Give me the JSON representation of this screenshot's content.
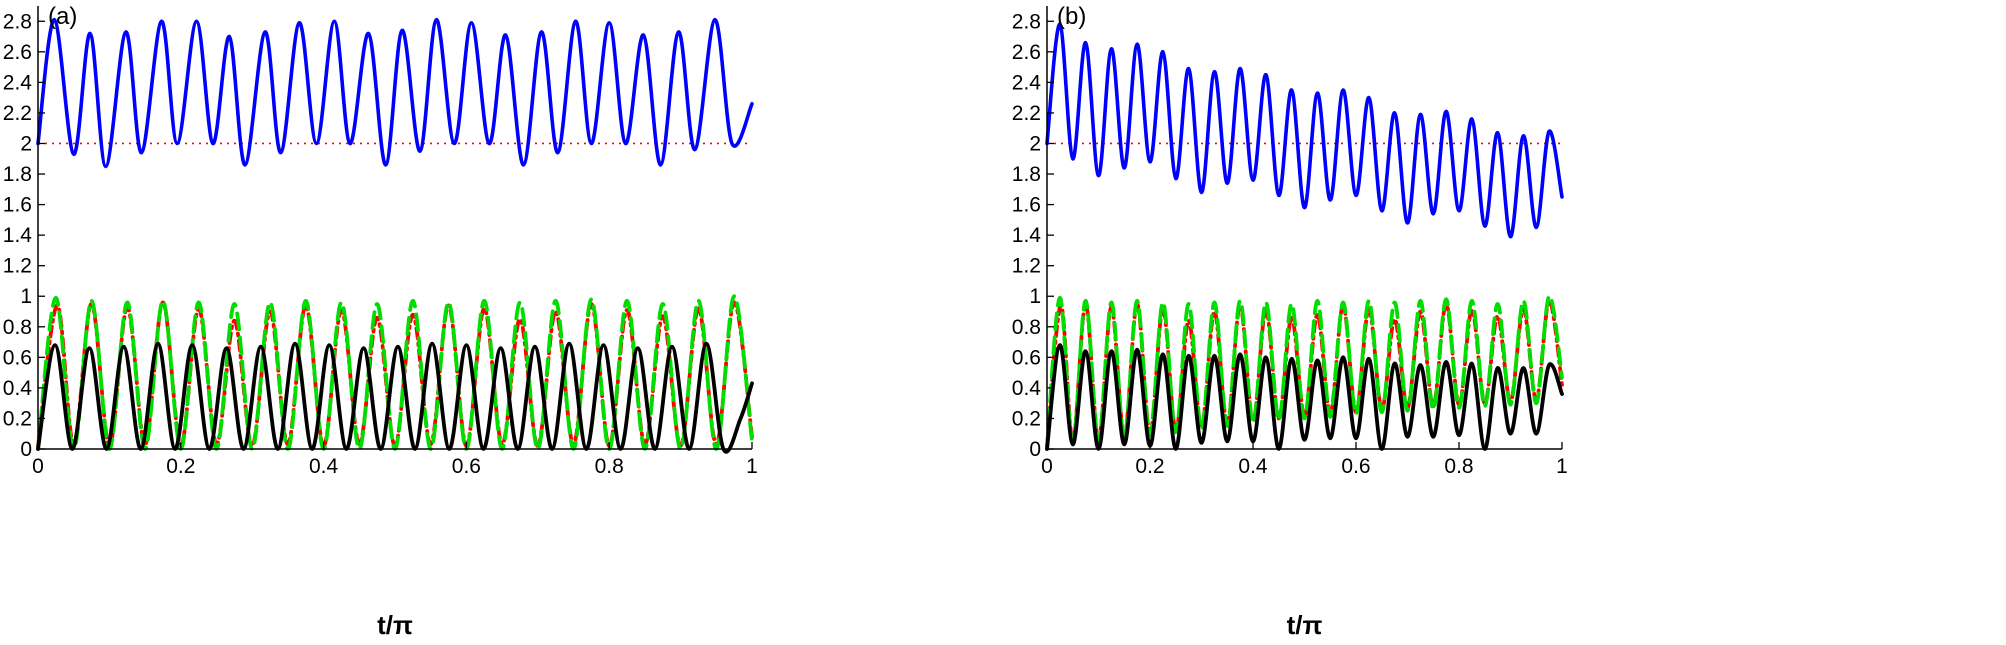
{
  "chart_data": [
    {
      "type": "line",
      "panel_label": "(a)",
      "xlabel": "t/π",
      "ylabel": "",
      "xlim": [
        0,
        1
      ],
      "ylim": [
        0,
        2.9
      ],
      "x_ticks": [
        "0",
        "0.2",
        "0.4",
        "0.6",
        "0.8",
        "1"
      ],
      "y_ticks": [
        "0",
        "0.2",
        "0.4",
        "0.6",
        "0.8",
        "1",
        "1.2",
        "1.4",
        "1.6",
        "1.8",
        "2",
        "2.2",
        "2.4",
        "2.6",
        "2.8"
      ],
      "grid": false,
      "reference_line": {
        "y": 2,
        "color": "#ff0000",
        "style": "dotted"
      },
      "series": [
        {
          "color": "#0000ff",
          "style": "solid",
          "x": [
            0,
            0.023,
            0.05,
            0.073,
            0.095,
            0.123,
            0.145,
            0.173,
            0.195,
            0.222,
            0.245,
            0.268,
            0.29,
            0.318,
            0.34,
            0.366,
            0.39,
            0.415,
            0.437,
            0.463,
            0.487,
            0.51,
            0.535,
            0.558,
            0.583,
            0.607,
            0.632,
            0.655,
            0.68,
            0.705,
            0.728,
            0.753,
            0.775,
            0.8,
            0.823,
            0.848,
            0.872,
            0.897,
            0.92,
            0.948,
            0.972,
            1.0
          ],
          "y": [
            2.0,
            2.81,
            1.93,
            2.72,
            1.85,
            2.73,
            1.94,
            2.8,
            2.0,
            2.8,
            2.0,
            2.7,
            1.86,
            2.73,
            1.94,
            2.79,
            2.0,
            2.8,
            2.0,
            2.72,
            1.86,
            2.74,
            1.95,
            2.81,
            2.0,
            2.79,
            2.0,
            2.71,
            1.86,
            2.73,
            1.94,
            2.8,
            2.0,
            2.79,
            2.0,
            2.71,
            1.86,
            2.73,
            1.96,
            2.81,
            2.0,
            2.26
          ]
        },
        {
          "color": "#000000",
          "style": "solid",
          "x": [
            0,
            0.024,
            0.048,
            0.072,
            0.096,
            0.12,
            0.144,
            0.168,
            0.192,
            0.216,
            0.24,
            0.264,
            0.288,
            0.312,
            0.336,
            0.36,
            0.384,
            0.408,
            0.432,
            0.456,
            0.48,
            0.504,
            0.528,
            0.552,
            0.576,
            0.6,
            0.624,
            0.648,
            0.672,
            0.696,
            0.72,
            0.744,
            0.768,
            0.792,
            0.816,
            0.84,
            0.864,
            0.888,
            0.912,
            0.936,
            0.96,
            0.984,
            1.0
          ],
          "y": [
            0.0,
            0.68,
            0.0,
            0.66,
            0.0,
            0.67,
            0.0,
            0.69,
            0.0,
            0.68,
            0.0,
            0.66,
            0.0,
            0.67,
            0.0,
            0.69,
            0.0,
            0.68,
            0.0,
            0.66,
            0.0,
            0.67,
            0.0,
            0.69,
            0.0,
            0.68,
            0.0,
            0.66,
            0.0,
            0.67,
            0.0,
            0.69,
            0.0,
            0.68,
            0.0,
            0.66,
            0.0,
            0.67,
            0.0,
            0.69,
            0.0,
            0.2,
            0.43
          ]
        },
        {
          "color": "#ff0000",
          "style": "dashdot",
          "x": [
            0,
            0.027,
            0.05,
            0.075,
            0.1,
            0.125,
            0.15,
            0.175,
            0.2,
            0.225,
            0.25,
            0.275,
            0.3,
            0.325,
            0.35,
            0.375,
            0.4,
            0.425,
            0.45,
            0.475,
            0.5,
            0.525,
            0.55,
            0.575,
            0.6,
            0.625,
            0.65,
            0.675,
            0.7,
            0.725,
            0.75,
            0.775,
            0.8,
            0.825,
            0.85,
            0.875,
            0.9,
            0.925,
            0.95,
            0.975,
            1.0
          ],
          "y": [
            0.02,
            0.94,
            0.03,
            0.95,
            0.02,
            0.93,
            0.03,
            0.96,
            0.02,
            0.92,
            0.03,
            0.84,
            0.02,
            0.9,
            0.03,
            0.94,
            0.02,
            0.91,
            0.03,
            0.86,
            0.02,
            0.88,
            0.03,
            0.94,
            0.02,
            0.92,
            0.03,
            0.85,
            0.02,
            0.9,
            0.03,
            0.95,
            0.02,
            0.91,
            0.03,
            0.87,
            0.02,
            0.92,
            0.03,
            0.96,
            0.08
          ]
        },
        {
          "color": "#00dd00",
          "style": "dashed",
          "x": [
            0,
            0.025,
            0.05,
            0.075,
            0.1,
            0.125,
            0.15,
            0.175,
            0.2,
            0.225,
            0.25,
            0.275,
            0.3,
            0.325,
            0.35,
            0.375,
            0.4,
            0.425,
            0.45,
            0.475,
            0.5,
            0.525,
            0.55,
            0.575,
            0.6,
            0.625,
            0.65,
            0.675,
            0.7,
            0.725,
            0.75,
            0.775,
            0.8,
            0.825,
            0.85,
            0.875,
            0.9,
            0.925,
            0.95,
            0.975,
            1.0
          ],
          "y": [
            0.0,
            0.99,
            0.0,
            0.97,
            0.0,
            0.96,
            0.0,
            0.97,
            0.0,
            0.96,
            0.0,
            0.95,
            0.0,
            0.96,
            0.0,
            0.97,
            0.0,
            0.96,
            0.0,
            0.95,
            0.0,
            0.97,
            0.0,
            0.96,
            0.0,
            0.97,
            0.0,
            0.96,
            0.0,
            0.97,
            0.0,
            0.98,
            0.0,
            0.97,
            0.0,
            0.95,
            0.0,
            0.97,
            0.0,
            1.0,
            0.05
          ]
        }
      ]
    },
    {
      "type": "line",
      "panel_label": "(b)",
      "xlabel": "t/π",
      "ylabel": "",
      "xlim": [
        0,
        1
      ],
      "ylim": [
        0,
        2.9
      ],
      "x_ticks": [
        "0",
        "0.2",
        "0.4",
        "0.6",
        "0.8",
        "1"
      ],
      "y_ticks": [
        "0",
        "0.2",
        "0.4",
        "0.6",
        "0.8",
        "1",
        "1.2",
        "1.4",
        "1.6",
        "1.8",
        "2",
        "2.2",
        "2.4",
        "2.6",
        "2.8"
      ],
      "grid": false,
      "reference_line": {
        "y": 2,
        "color": "#ff0000",
        "style": "dotted"
      },
      "series": [
        {
          "color": "#0000ff",
          "style": "solid",
          "x": [
            0,
            0.025,
            0.05,
            0.075,
            0.1,
            0.125,
            0.15,
            0.175,
            0.2,
            0.225,
            0.25,
            0.275,
            0.3,
            0.325,
            0.35,
            0.375,
            0.4,
            0.425,
            0.45,
            0.475,
            0.5,
            0.525,
            0.55,
            0.575,
            0.6,
            0.625,
            0.65,
            0.675,
            0.7,
            0.725,
            0.75,
            0.775,
            0.8,
            0.825,
            0.85,
            0.875,
            0.9,
            0.925,
            0.95,
            0.975,
            1.0
          ],
          "y": [
            2.0,
            2.78,
            1.9,
            2.66,
            1.79,
            2.62,
            1.84,
            2.65,
            1.88,
            2.6,
            1.77,
            2.49,
            1.68,
            2.47,
            1.74,
            2.49,
            1.76,
            2.45,
            1.66,
            2.35,
            1.58,
            2.33,
            1.63,
            2.35,
            1.66,
            2.3,
            1.56,
            2.2,
            1.48,
            2.19,
            1.54,
            2.21,
            1.56,
            2.16,
            1.46,
            2.07,
            1.39,
            2.05,
            1.45,
            2.08,
            1.65
          ]
        },
        {
          "color": "#000000",
          "style": "solid",
          "x": [
            0,
            0.025,
            0.05,
            0.075,
            0.1,
            0.125,
            0.15,
            0.175,
            0.2,
            0.225,
            0.25,
            0.275,
            0.3,
            0.325,
            0.35,
            0.375,
            0.4,
            0.425,
            0.45,
            0.475,
            0.5,
            0.525,
            0.55,
            0.575,
            0.6,
            0.625,
            0.65,
            0.675,
            0.7,
            0.725,
            0.75,
            0.775,
            0.8,
            0.825,
            0.85,
            0.875,
            0.9,
            0.925,
            0.95,
            0.975,
            1.0
          ],
          "y": [
            0.0,
            0.68,
            0.03,
            0.64,
            0.0,
            0.64,
            0.03,
            0.65,
            0.02,
            0.62,
            0.0,
            0.61,
            0.04,
            0.61,
            0.05,
            0.62,
            0.05,
            0.6,
            0.0,
            0.59,
            0.06,
            0.58,
            0.07,
            0.6,
            0.07,
            0.59,
            0.0,
            0.56,
            0.08,
            0.55,
            0.08,
            0.57,
            0.09,
            0.56,
            0.0,
            0.53,
            0.1,
            0.53,
            0.1,
            0.55,
            0.36
          ]
        },
        {
          "color": "#ff0000",
          "style": "dashdot",
          "x": [
            0,
            0.027,
            0.05,
            0.075,
            0.1,
            0.125,
            0.15,
            0.175,
            0.2,
            0.225,
            0.25,
            0.275,
            0.3,
            0.325,
            0.35,
            0.375,
            0.4,
            0.425,
            0.45,
            0.475,
            0.5,
            0.525,
            0.55,
            0.575,
            0.6,
            0.625,
            0.65,
            0.675,
            0.7,
            0.725,
            0.75,
            0.775,
            0.8,
            0.825,
            0.85,
            0.875,
            0.9,
            0.925,
            0.95,
            0.975,
            1.0
          ],
          "y": [
            0.02,
            0.94,
            0.05,
            0.95,
            0.06,
            0.93,
            0.08,
            0.95,
            0.1,
            0.92,
            0.12,
            0.84,
            0.14,
            0.9,
            0.16,
            0.94,
            0.18,
            0.91,
            0.2,
            0.86,
            0.22,
            0.88,
            0.23,
            0.94,
            0.24,
            0.92,
            0.26,
            0.85,
            0.27,
            0.9,
            0.28,
            0.95,
            0.29,
            0.91,
            0.3,
            0.87,
            0.31,
            0.92,
            0.32,
            0.97,
            0.42
          ]
        },
        {
          "color": "#00dd00",
          "style": "dashed",
          "x": [
            0,
            0.025,
            0.05,
            0.075,
            0.1,
            0.125,
            0.15,
            0.175,
            0.2,
            0.225,
            0.25,
            0.275,
            0.3,
            0.325,
            0.35,
            0.375,
            0.4,
            0.425,
            0.45,
            0.475,
            0.5,
            0.525,
            0.55,
            0.575,
            0.6,
            0.625,
            0.65,
            0.675,
            0.7,
            0.725,
            0.75,
            0.775,
            0.8,
            0.825,
            0.85,
            0.875,
            0.9,
            0.925,
            0.95,
            0.975,
            1.0
          ],
          "y": [
            0.0,
            0.99,
            0.04,
            0.97,
            0.05,
            0.96,
            0.07,
            0.97,
            0.09,
            0.96,
            0.11,
            0.95,
            0.13,
            0.96,
            0.15,
            0.97,
            0.17,
            0.96,
            0.19,
            0.95,
            0.2,
            0.97,
            0.21,
            0.96,
            0.23,
            0.97,
            0.24,
            0.96,
            0.25,
            0.97,
            0.26,
            0.98,
            0.27,
            0.97,
            0.28,
            0.95,
            0.29,
            0.97,
            0.3,
            1.0,
            0.47
          ]
        }
      ]
    }
  ]
}
